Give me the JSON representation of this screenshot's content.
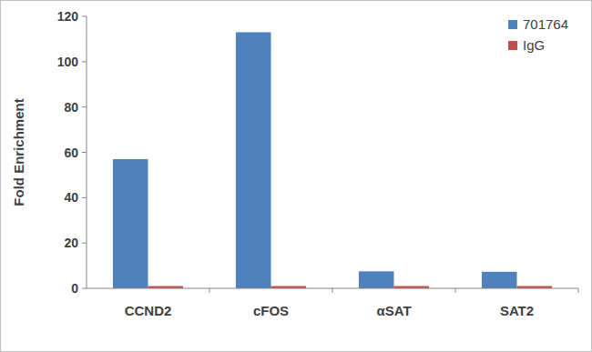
{
  "chart_data": {
    "type": "bar",
    "y_label": "Fold Enrichment",
    "categories": [
      "CCND2",
      "cFOS",
      "αSAT",
      "SAT2"
    ],
    "series": [
      {
        "name": "701764",
        "color": "#4f81bd",
        "values": [
          57,
          113,
          7.5,
          7.3
        ]
      },
      {
        "name": "IgG",
        "color": "#c0504d",
        "values": [
          1,
          1,
          1,
          1
        ]
      }
    ],
    "ylim": [
      0,
      120
    ],
    "yticks": [
      0,
      20,
      40,
      60,
      80,
      100,
      120
    ],
    "grid": false,
    "legend": "top-right"
  }
}
